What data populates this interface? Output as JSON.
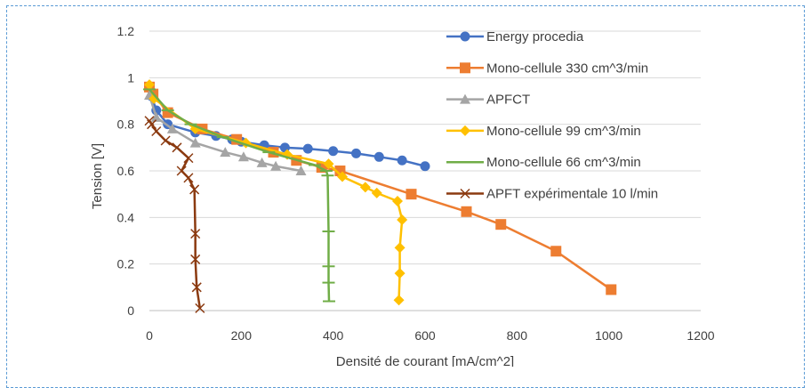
{
  "chart_data": {
    "type": "line",
    "title": "",
    "xlabel": "Densité de courant [mA/cm^2]",
    "ylabel": "Tension [V]",
    "xlim": [
      0,
      1200
    ],
    "ylim": [
      0,
      1.2
    ],
    "xticks": [
      0,
      200,
      400,
      600,
      800,
      1000,
      1200
    ],
    "yticks": [
      0,
      0.2,
      0.4,
      0.6,
      0.8,
      1,
      1.2
    ],
    "xtick_labels": [
      "0",
      "200",
      "400",
      "600",
      "800",
      "1000",
      "1200"
    ],
    "ytick_labels": [
      "0",
      "0.2",
      "0.4",
      "0.6",
      "0.8",
      "1",
      "1.2"
    ],
    "grid": "horizontal",
    "legend_position": "right",
    "series": [
      {
        "name": "Energy procedia",
        "color": "#4472c4",
        "marker": "circle",
        "points": [
          [
            0,
            0.96
          ],
          [
            5,
            0.92
          ],
          [
            15,
            0.86
          ],
          [
            40,
            0.8
          ],
          [
            100,
            0.765
          ],
          [
            145,
            0.75
          ],
          [
            180,
            0.735
          ],
          [
            200,
            0.725
          ],
          [
            250,
            0.71
          ],
          [
            295,
            0.7
          ],
          [
            345,
            0.695
          ],
          [
            400,
            0.685
          ],
          [
            450,
            0.675
          ],
          [
            500,
            0.66
          ],
          [
            550,
            0.645
          ],
          [
            600,
            0.62
          ]
        ]
      },
      {
        "name": "Mono-cellule 330 cm^3/min",
        "color": "#ed7d31",
        "marker": "square",
        "points": [
          [
            0,
            0.96
          ],
          [
            8,
            0.93
          ],
          [
            40,
            0.85
          ],
          [
            115,
            0.78
          ],
          [
            190,
            0.735
          ],
          [
            270,
            0.68
          ],
          [
            320,
            0.645
          ],
          [
            375,
            0.615
          ],
          [
            415,
            0.6
          ],
          [
            570,
            0.5
          ],
          [
            690,
            0.425
          ],
          [
            765,
            0.37
          ],
          [
            885,
            0.255
          ],
          [
            1005,
            0.09
          ]
        ]
      },
      {
        "name": "APFCT",
        "color": "#a5a5a5",
        "marker": "triangle",
        "points": [
          [
            0,
            0.925
          ],
          [
            15,
            0.83
          ],
          [
            50,
            0.78
          ],
          [
            100,
            0.72
          ],
          [
            165,
            0.68
          ],
          [
            205,
            0.66
          ],
          [
            245,
            0.635
          ],
          [
            275,
            0.62
          ],
          [
            330,
            0.6
          ]
        ]
      },
      {
        "name": "Mono-cellule  99 cm^3/min",
        "color": "#ffc000",
        "marker": "diamond",
        "points": [
          [
            0,
            0.97
          ],
          [
            10,
            0.91
          ],
          [
            100,
            0.78
          ],
          [
            210,
            0.72
          ],
          [
            300,
            0.67
          ],
          [
            390,
            0.63
          ],
          [
            420,
            0.575
          ],
          [
            470,
            0.53
          ],
          [
            495,
            0.505
          ],
          [
            540,
            0.47
          ],
          [
            550,
            0.39
          ],
          [
            545,
            0.27
          ],
          [
            545,
            0.16
          ],
          [
            543,
            0.045
          ]
        ]
      },
      {
        "name": "Mono-cellule 66 cm^3/min",
        "color": "#70ad47",
        "marker": "dash",
        "points": [
          [
            0,
            0.95
          ],
          [
            40,
            0.86
          ],
          [
            90,
            0.8
          ],
          [
            160,
            0.745
          ],
          [
            260,
            0.68
          ],
          [
            360,
            0.625
          ],
          [
            385,
            0.6
          ],
          [
            388,
            0.58
          ],
          [
            390,
            0.34
          ],
          [
            390,
            0.19
          ],
          [
            390,
            0.12
          ],
          [
            391,
            0.04
          ]
        ]
      },
      {
        "name": "APFT expérimentale 10 l/min",
        "color": "#8b3a10",
        "marker": "x",
        "points": [
          [
            0,
            0.815
          ],
          [
            5,
            0.8
          ],
          [
            15,
            0.77
          ],
          [
            35,
            0.73
          ],
          [
            60,
            0.7
          ],
          [
            85,
            0.655
          ],
          [
            70,
            0.6
          ],
          [
            85,
            0.57
          ],
          [
            98,
            0.52
          ],
          [
            100,
            0.33
          ],
          [
            100,
            0.22
          ],
          [
            103,
            0.1
          ],
          [
            110,
            0.01
          ]
        ]
      }
    ]
  }
}
